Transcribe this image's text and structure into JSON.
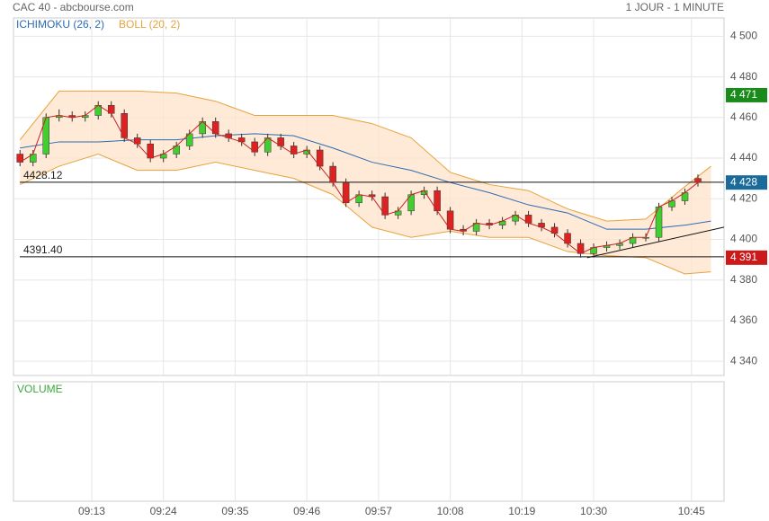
{
  "chart_data": {
    "type": "candlestick",
    "title": "CAC 40 - abcbourse.com",
    "subtitle": "1 JOUR - 1 MINUTE",
    "legend": [
      {
        "name": "ICHIMOKU (26, 2)",
        "color": "#2a6cb5"
      },
      {
        "name": "BOLL (20, 2)",
        "color": "#e8a23a"
      }
    ],
    "volume_label": "VOLUME",
    "volume_color": "#3aaa3a",
    "up_color": "#44cc33",
    "down_color": "#dd2222",
    "close_line_color": "#cc2222",
    "x": [
      "09:02",
      "09:04",
      "09:06",
      "09:08",
      "09:10",
      "09:12",
      "09:14",
      "09:16",
      "09:18",
      "09:20",
      "09:22",
      "09:24",
      "09:26",
      "09:28",
      "09:30",
      "09:32",
      "09:34",
      "09:36",
      "09:38",
      "09:40",
      "09:42",
      "09:44",
      "09:46",
      "09:48",
      "09:50",
      "09:52",
      "09:54",
      "09:56",
      "09:58",
      "10:00",
      "10:02",
      "10:04",
      "10:06",
      "10:08",
      "10:10",
      "10:12",
      "10:14",
      "10:16",
      "10:18",
      "10:20",
      "10:22",
      "10:24",
      "10:26",
      "10:28",
      "10:30",
      "10:32",
      "10:34",
      "10:36",
      "10:38",
      "10:40",
      "10:42",
      "10:44",
      "10:46"
    ],
    "open": [
      4442,
      4438,
      4442,
      4460,
      4461,
      4460,
      4461,
      4466,
      4462,
      4450,
      4447,
      4440,
      4442,
      4446,
      4452,
      4458,
      4452,
      4450,
      4448,
      4443,
      4450,
      4446,
      4442,
      4444,
      4436,
      4428,
      4418,
      4422,
      4421,
      4412,
      4414,
      4422,
      4424,
      4414,
      4405,
      4404,
      4408,
      4407,
      4409,
      4412,
      4408,
      4406,
      4403,
      4398,
      4393,
      4396,
      4397,
      4398,
      4401,
      4401,
      4416,
      4419,
      4430
    ],
    "high": [
      4444,
      4444,
      4462,
      4464,
      4463,
      4463,
      4468,
      4468,
      4464,
      4452,
      4449,
      4444,
      4448,
      4454,
      4460,
      4460,
      4454,
      4452,
      4450,
      4452,
      4452,
      4448,
      4446,
      4446,
      4438,
      4430,
      4424,
      4424,
      4423,
      4416,
      4424,
      4426,
      4426,
      4416,
      4407,
      4410,
      4410,
      4411,
      4414,
      4414,
      4410,
      4408,
      4405,
      4400,
      4398,
      4399,
      4400,
      4403,
      4403,
      4418,
      4421,
      4425,
      4432
    ],
    "low": [
      4436,
      4436,
      4440,
      4458,
      4458,
      4458,
      4459,
      4460,
      4448,
      4445,
      4438,
      4438,
      4440,
      4444,
      4450,
      4450,
      4448,
      4446,
      4441,
      4441,
      4444,
      4440,
      4440,
      4434,
      4426,
      4416,
      4416,
      4419,
      4410,
      4410,
      4412,
      4420,
      4412,
      4403,
      4402,
      4402,
      4405,
      4405,
      4407,
      4406,
      4404,
      4401,
      4396,
      4391,
      4391,
      4394,
      4395,
      4396,
      4399,
      4399,
      4414,
      4417,
      4426
    ],
    "close": [
      4438,
      4442,
      4460,
      4461,
      4460,
      4461,
      4466,
      4462,
      4450,
      4447,
      4440,
      4442,
      4446,
      4452,
      4458,
      4452,
      4450,
      4448,
      4443,
      4450,
      4446,
      4442,
      4444,
      4436,
      4428,
      4418,
      4422,
      4421,
      4412,
      4414,
      4422,
      4424,
      4414,
      4405,
      4404,
      4408,
      4407,
      4409,
      4412,
      4408,
      4406,
      4403,
      4398,
      4393,
      4396,
      4397,
      4398,
      4401,
      4401,
      4416,
      4419,
      4423,
      4428
    ],
    "bands": {
      "x": [
        "09:02",
        "09:08",
        "09:14",
        "09:20",
        "09:26",
        "09:32",
        "09:38",
        "09:44",
        "09:50",
        "09:56",
        "10:02",
        "10:08",
        "10:14",
        "10:20",
        "10:26",
        "10:32",
        "10:38",
        "10:44",
        "10:48"
      ],
      "upper": [
        4449,
        4473,
        4473,
        4473,
        4472,
        4468,
        4461,
        4461,
        4461,
        4457,
        4450,
        4433,
        4427,
        4424,
        4415,
        4409,
        4410,
        4426,
        4436
      ],
      "lower": [
        4427,
        4436,
        4442,
        4434,
        4434,
        4438,
        4434,
        4430,
        4422,
        4406,
        4401,
        4404,
        4401,
        4401,
        4394,
        4392,
        4391,
        4383,
        4384
      ],
      "ichimoku": [
        4445,
        4448,
        4448,
        4449,
        4449,
        4451,
        4452,
        4451,
        4445,
        4438,
        4434,
        4428,
        4423,
        4417,
        4413,
        4405,
        4405,
        4407,
        4409
      ]
    },
    "levels": [
      {
        "value": 4428.12,
        "label": "4428.12"
      },
      {
        "value": 4391.4,
        "label": "4391.40"
      }
    ],
    "trendline": {
      "x": [
        "10:29",
        "10:50"
      ],
      "y": [
        4391,
        4406
      ]
    },
    "price_tags": [
      {
        "value": 4471,
        "label": "4 471",
        "color": "#1a8a1a"
      },
      {
        "value": 4428,
        "label": "4 428",
        "color": "#1a6a9a"
      },
      {
        "value": 4391,
        "label": "4 391",
        "color": "#cc1a1a"
      }
    ],
    "xlim": [
      "09:01",
      "10:50"
    ],
    "xticks": [
      "09:13",
      "09:24",
      "09:35",
      "09:46",
      "09:57",
      "10:08",
      "10:19",
      "10:30",
      "10:45"
    ],
    "ylim": [
      4333,
      4509
    ],
    "yticks": [
      {
        "value": 4340,
        "label": "4 340"
      },
      {
        "value": 4360,
        "label": "4 360"
      },
      {
        "value": 4380,
        "label": "4 380"
      },
      {
        "value": 4400,
        "label": "4 400"
      },
      {
        "value": 4420,
        "label": "4 420"
      },
      {
        "value": 4440,
        "label": "4 440"
      },
      {
        "value": 4460,
        "label": "4 460"
      },
      {
        "value": 4480,
        "label": "4 480"
      },
      {
        "value": 4500,
        "label": "4 500"
      }
    ],
    "grid": true
  }
}
